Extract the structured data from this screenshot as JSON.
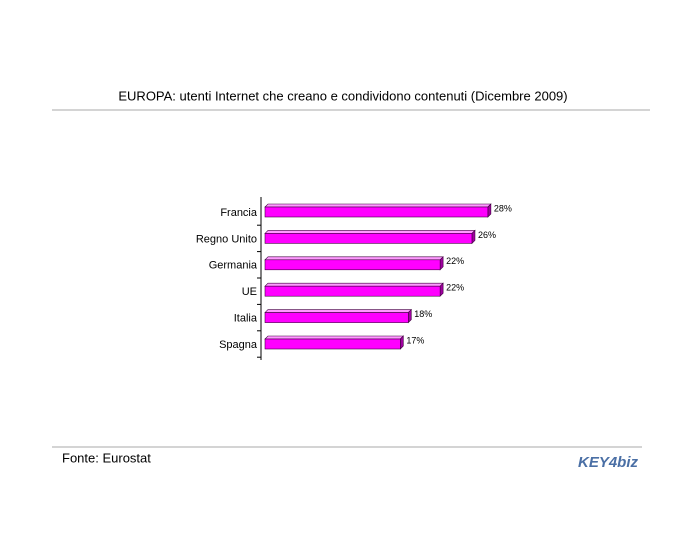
{
  "chart_data": {
    "type": "bar",
    "orientation": "horizontal",
    "title": "EUROPA: utenti Internet che creano e condividono contenuti (Dicembre 2009)",
    "categories": [
      "Francia",
      "Regno Unito",
      "Germania",
      "UE",
      "Italia",
      "Spagna"
    ],
    "values": [
      28,
      26,
      22,
      22,
      18,
      17
    ],
    "value_labels": [
      "28%",
      "26%",
      "22%",
      "22%",
      "18%",
      "17%"
    ],
    "color": "#ff00ff",
    "source": "Fonte: Eurostat",
    "logo": "KEY4biz"
  }
}
